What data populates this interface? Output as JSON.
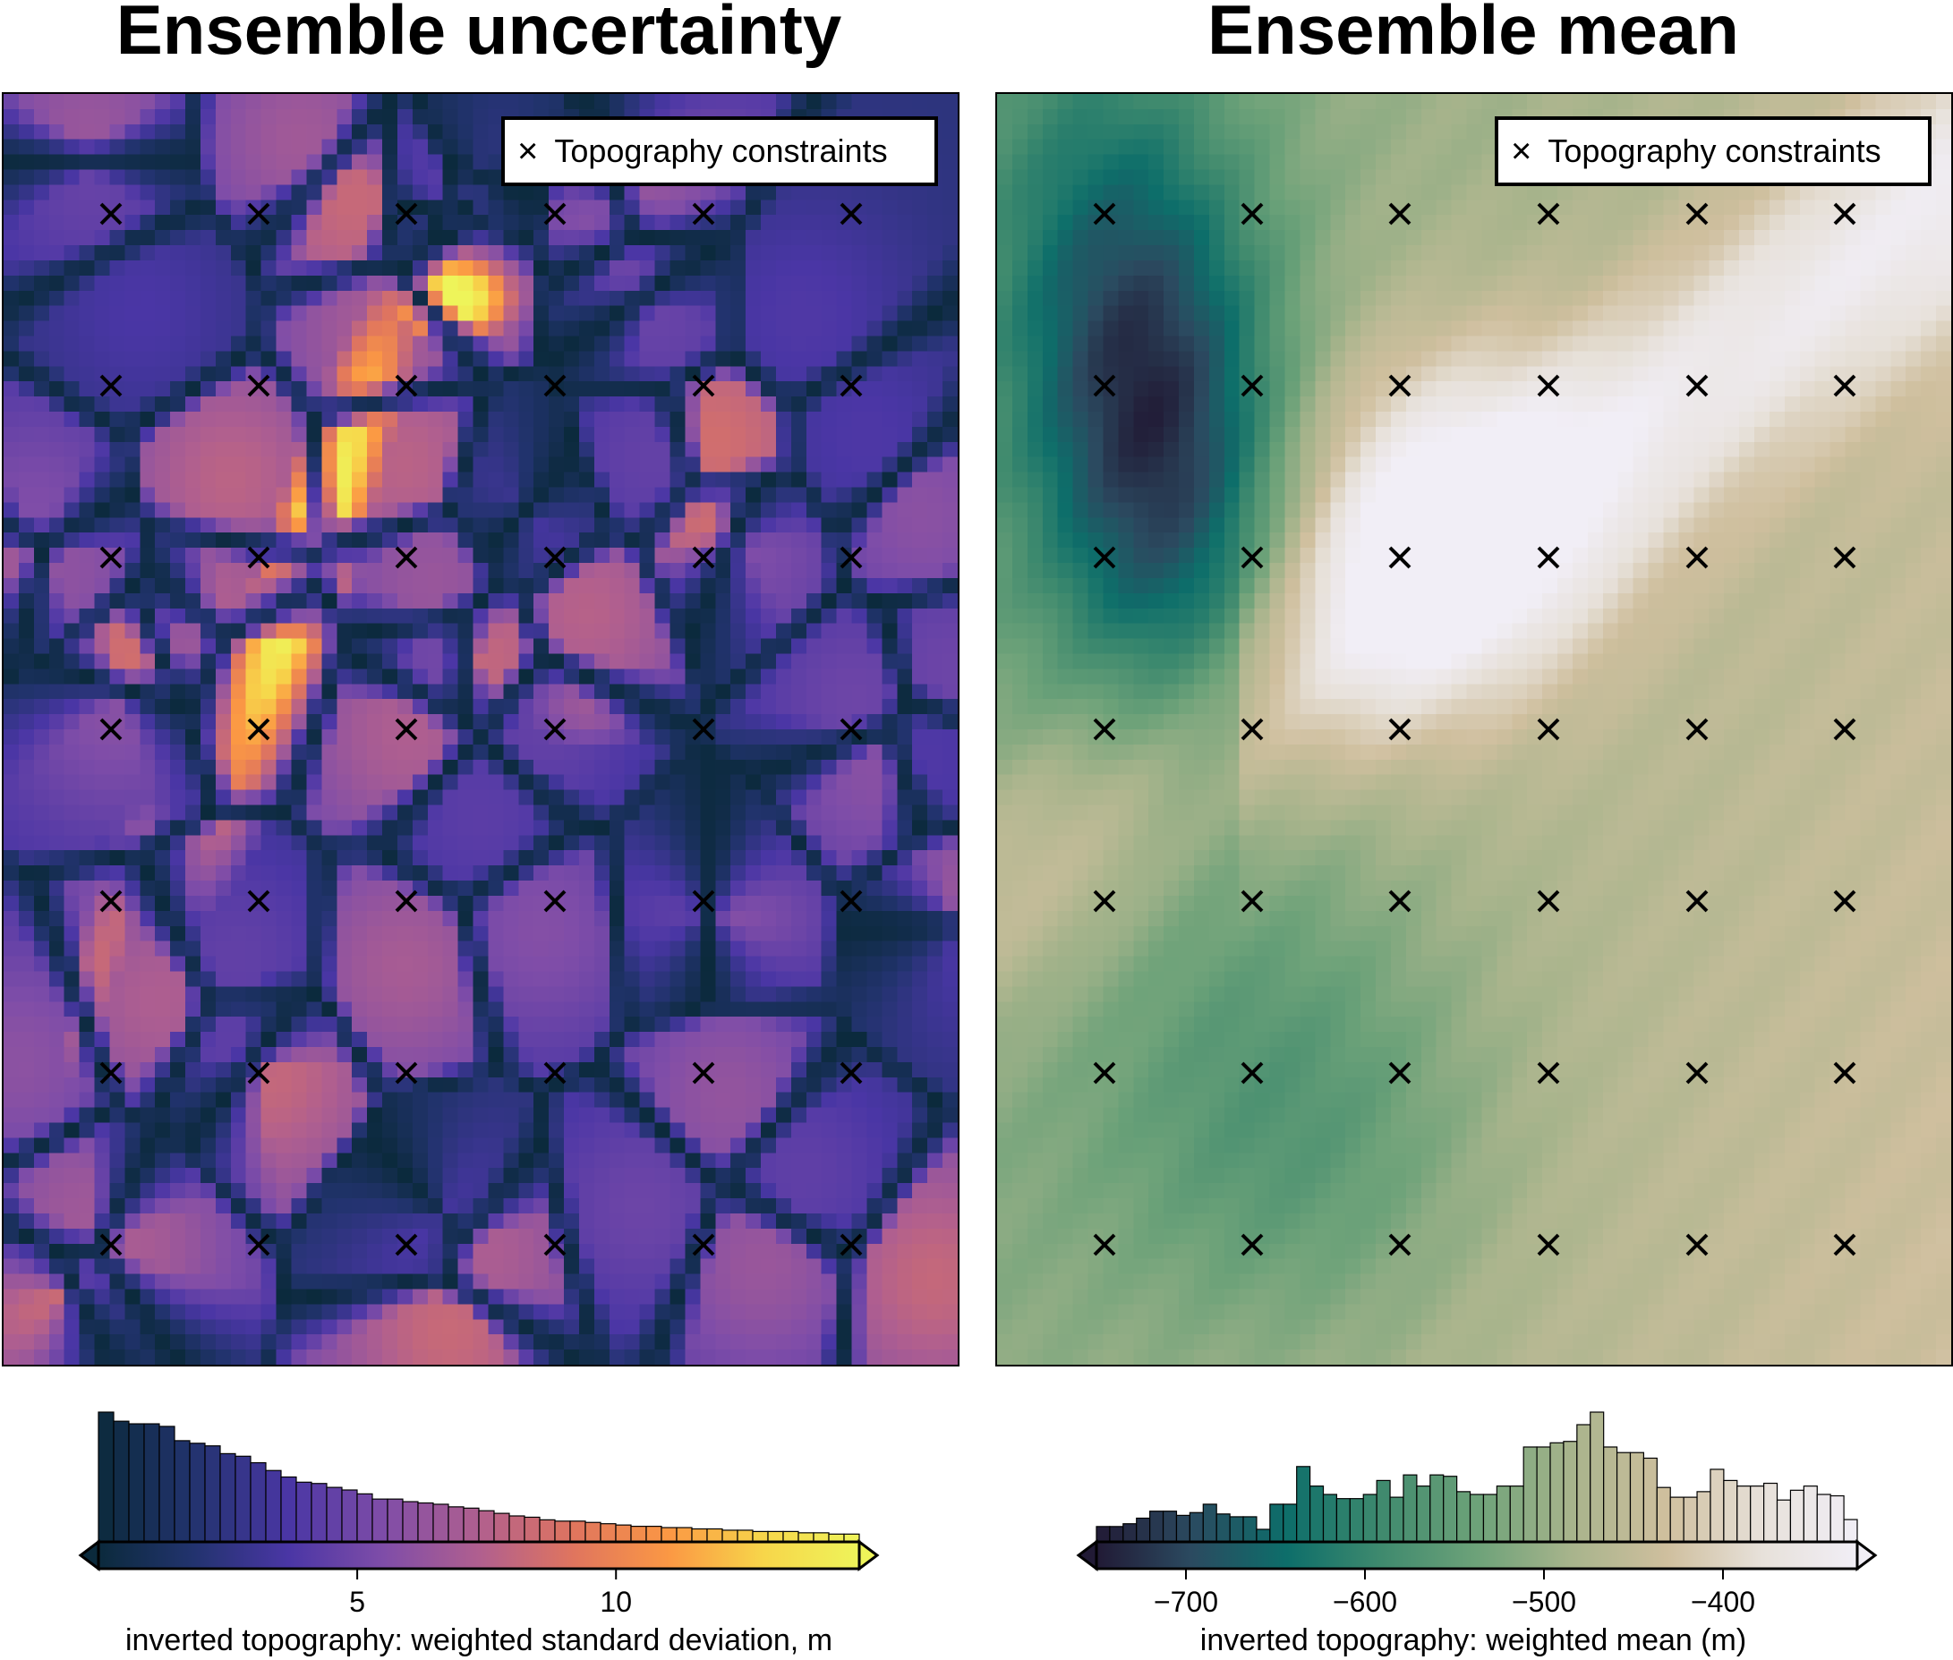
{
  "chart_data": [
    {
      "type": "heatmap",
      "title": "Ensemble uncertainty",
      "legend": {
        "label": "Topography constraints",
        "symbol": "×",
        "placement": "top-right"
      },
      "colormap": "thermal / plasma-like (dark navy → purple → orange → yellow)",
      "constraint_grid": {
        "columns": 6,
        "rows": 7
      },
      "colorbar": {
        "label": "inverted topography: weighted standard deviation, m",
        "range": [
          0.0,
          14.7
        ],
        "ticks": [
          5,
          10
        ],
        "tick_labels": [
          "5",
          "10"
        ],
        "extend": "both",
        "histogram_counts": [
          100,
          93,
          91,
          91,
          89,
          78,
          76,
          74,
          68,
          66,
          61,
          55,
          50,
          46,
          45,
          42,
          40,
          37,
          33,
          33,
          31,
          30,
          29,
          27,
          26,
          24,
          22,
          20,
          19,
          17,
          16,
          16,
          15,
          14,
          13,
          12,
          12,
          11,
          11,
          10,
          10,
          9,
          9,
          8,
          8,
          8,
          7,
          7,
          6,
          6
        ]
      }
    },
    {
      "type": "heatmap",
      "title": "Ensemble mean",
      "legend": {
        "label": "Topography constraints",
        "symbol": "×",
        "placement": "top-right"
      },
      "colormap": "rain / topo-like (dark purple → teal → sage green → tan → white)",
      "constraint_grid": {
        "columns": 6,
        "rows": 7
      },
      "colorbar": {
        "label": "inverted topography: weighted mean (m)",
        "range": [
          -750,
          -325
        ],
        "ticks": [
          -700,
          -600,
          -500,
          -400
        ],
        "tick_labels": [
          "−700",
          "−600",
          "−500",
          "−400"
        ],
        "extend": "both",
        "histogram_counts": [
          11,
          11,
          13,
          17,
          22,
          22,
          19,
          21,
          27,
          20,
          18,
          18,
          9,
          27,
          27,
          54,
          40,
          34,
          31,
          31,
          34,
          44,
          32,
          48,
          40,
          48,
          47,
          36,
          34,
          34,
          40,
          40,
          68,
          68,
          71,
          72,
          84,
          93,
          68,
          64,
          64,
          60,
          39,
          32,
          32,
          36,
          52,
          44,
          40,
          40,
          42,
          30,
          37,
          40,
          34,
          33,
          16
        ]
      }
    }
  ],
  "colors": {
    "uncertainty_stops": [
      "#0b2a3c",
      "#22336e",
      "#4a36a5",
      "#7f4da8",
      "#b05f8f",
      "#e0755e",
      "#fb9844",
      "#f7d64a",
      "#eef45a"
    ],
    "mean_stops": [
      "#211a35",
      "#2b4a60",
      "#0d6e6a",
      "#3f8a6e",
      "#6da279",
      "#a8b48c",
      "#cfbf9e",
      "#e7e1da",
      "#f1eef6"
    ]
  }
}
